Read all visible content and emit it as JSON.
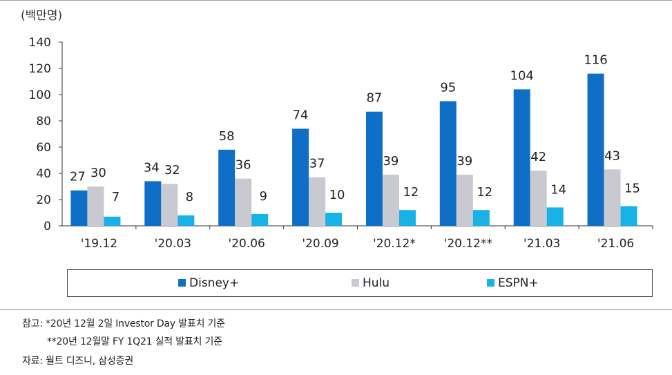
{
  "chart_data": {
    "type": "bar",
    "unit_label": "(백만명)",
    "categories": [
      "'19.12",
      "'20.03",
      "'20.06",
      "'20.09",
      "'20.12*",
      "'20.12**",
      "'21.03",
      "'21.06"
    ],
    "series": [
      {
        "name": "Disney+",
        "color": "#0f6fc6",
        "values": [
          27,
          34,
          58,
          74,
          87,
          95,
          104,
          116
        ]
      },
      {
        "name": "Hulu",
        "color": "#c9c9d1",
        "values": [
          30,
          32,
          36,
          37,
          39,
          39,
          42,
          43
        ]
      },
      {
        "name": "ESPN+",
        "color": "#19b2e6",
        "values": [
          7,
          8,
          9,
          10,
          12,
          12,
          14,
          15
        ]
      }
    ],
    "ylim": [
      0,
      140
    ],
    "yticks": [
      0,
      20,
      40,
      60,
      80,
      100,
      120,
      140
    ],
    "grid": false,
    "legend_position": "bottom"
  },
  "notes": {
    "note1": "참고: *20년 12월 2일 Investor Day 발표치 기준",
    "note2": "**20년 12월말 FY 1Q21 실적 발표치 기준",
    "source": "자료: 월트 디즈니, 삼성증권"
  }
}
